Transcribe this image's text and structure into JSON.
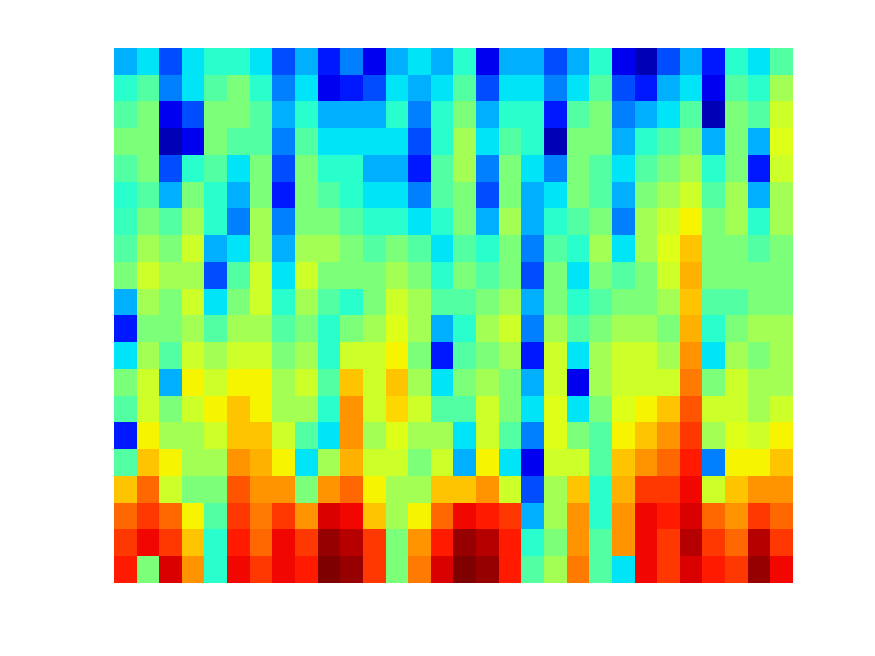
{
  "chart_data": {
    "type": "heatmap",
    "color": "jet",
    "tick_labels": false,
    "grid": false,
    "color_range": [
      0,
      1
    ],
    "cells": [
      [
        0.3,
        0.4,
        0.45,
        0.5,
        0.45,
        0.4,
        0.42,
        0.45,
        0.5,
        0.3,
        0.15,
        0.35,
        0.5,
        0.45,
        0.15,
        0.45,
        0.7,
        0.8,
        0.85,
        0.88
      ],
      [
        0.35,
        0.45,
        0.5,
        0.5,
        0.5,
        0.45,
        0.5,
        0.55,
        0.6,
        0.55,
        0.5,
        0.55,
        0.6,
        0.6,
        0.65,
        0.7,
        0.8,
        0.85,
        0.9,
        0.5
      ],
      [
        0.2,
        0.25,
        0.1,
        0.05,
        0.2,
        0.3,
        0.45,
        0.5,
        0.55,
        0.5,
        0.5,
        0.45,
        0.3,
        0.5,
        0.55,
        0.65,
        0.6,
        0.8,
        0.85,
        0.92
      ],
      [
        0.35,
        0.35,
        0.2,
        0.1,
        0.4,
        0.5,
        0.55,
        0.6,
        0.55,
        0.6,
        0.55,
        0.6,
        0.65,
        0.6,
        0.55,
        0.55,
        0.5,
        0.65,
        0.7,
        0.75
      ],
      [
        0.4,
        0.45,
        0.5,
        0.5,
        0.45,
        0.4,
        0.4,
        0.3,
        0.2,
        0.35,
        0.45,
        0.55,
        0.6,
        0.65,
        0.6,
        0.55,
        0.5,
        0.45,
        0.4,
        0.4
      ],
      [
        0.4,
        0.5,
        0.5,
        0.45,
        0.35,
        0.3,
        0.25,
        0.35,
        0.45,
        0.5,
        0.55,
        0.6,
        0.65,
        0.7,
        0.7,
        0.75,
        0.82,
        0.85,
        0.88,
        0.9
      ],
      [
        0.35,
        0.4,
        0.45,
        0.45,
        0.5,
        0.5,
        0.55,
        0.55,
        0.6,
        0.6,
        0.55,
        0.6,
        0.65,
        0.65,
        0.7,
        0.72,
        0.75,
        0.78,
        0.8,
        0.85
      ],
      [
        0.2,
        0.25,
        0.3,
        0.25,
        0.2,
        0.15,
        0.25,
        0.3,
        0.35,
        0.4,
        0.45,
        0.5,
        0.55,
        0.55,
        0.6,
        0.65,
        0.75,
        0.85,
        0.9,
        0.9
      ],
      [
        0.3,
        0.35,
        0.4,
        0.45,
        0.5,
        0.5,
        0.5,
        0.55,
        0.6,
        0.55,
        0.5,
        0.55,
        0.6,
        0.55,
        0.45,
        0.35,
        0.5,
        0.75,
        0.85,
        0.88
      ],
      [
        0.15,
        0.1,
        0.3,
        0.35,
        0.4,
        0.45,
        0.5,
        0.55,
        0.5,
        0.45,
        0.4,
        0.4,
        0.45,
        0.4,
        0.35,
        0.55,
        0.75,
        0.92,
        0.98,
        1.0
      ],
      [
        0.25,
        0.15,
        0.3,
        0.35,
        0.4,
        0.4,
        0.45,
        0.5,
        0.5,
        0.4,
        0.5,
        0.6,
        0.7,
        0.75,
        0.75,
        0.72,
        0.8,
        0.9,
        0.95,
        0.98
      ],
      [
        0.1,
        0.2,
        0.3,
        0.35,
        0.3,
        0.35,
        0.4,
        0.45,
        0.5,
        0.5,
        0.55,
        0.6,
        0.6,
        0.6,
        0.55,
        0.6,
        0.65,
        0.7,
        0.85,
        0.85
      ],
      [
        0.3,
        0.35,
        0.4,
        0.35,
        0.3,
        0.35,
        0.4,
        0.5,
        0.55,
        0.6,
        0.62,
        0.65,
        0.7,
        0.68,
        0.62,
        0.6,
        0.55,
        0.55,
        0.5,
        0.5
      ],
      [
        0.35,
        0.3,
        0.25,
        0.2,
        0.15,
        0.25,
        0.35,
        0.45,
        0.5,
        0.55,
        0.55,
        0.5,
        0.55,
        0.6,
        0.55,
        0.5,
        0.55,
        0.65,
        0.75,
        0.78
      ],
      [
        0.3,
        0.35,
        0.4,
        0.4,
        0.45,
        0.45,
        0.4,
        0.35,
        0.4,
        0.45,
        0.3,
        0.15,
        0.35,
        0.45,
        0.55,
        0.6,
        0.7,
        0.8,
        0.88,
        0.92
      ],
      [
        0.4,
        0.45,
        0.5,
        0.55,
        0.55,
        0.5,
        0.5,
        0.45,
        0.5,
        0.45,
        0.4,
        0.45,
        0.5,
        0.45,
        0.35,
        0.3,
        0.7,
        0.9,
        0.98,
        1.0
      ],
      [
        0.1,
        0.2,
        0.3,
        0.35,
        0.25,
        0.2,
        0.3,
        0.4,
        0.45,
        0.5,
        0.55,
        0.5,
        0.55,
        0.6,
        0.6,
        0.65,
        0.75,
        0.88,
        0.95,
        0.98
      ],
      [
        0.3,
        0.35,
        0.4,
        0.45,
        0.5,
        0.5,
        0.55,
        0.5,
        0.5,
        0.55,
        0.6,
        0.55,
        0.5,
        0.5,
        0.45,
        0.35,
        0.6,
        0.85,
        0.88,
        0.88
      ],
      [
        0.3,
        0.35,
        0.4,
        0.4,
        0.35,
        0.3,
        0.3,
        0.25,
        0.2,
        0.3,
        0.25,
        0.15,
        0.3,
        0.35,
        0.25,
        0.1,
        0.2,
        0.3,
        0.4,
        0.45
      ],
      [
        0.2,
        0.25,
        0.15,
        0.05,
        0.25,
        0.35,
        0.4,
        0.45,
        0.5,
        0.5,
        0.55,
        0.6,
        0.6,
        0.62,
        0.62,
        0.6,
        0.55,
        0.55,
        0.5,
        0.55
      ],
      [
        0.3,
        0.35,
        0.45,
        0.5,
        0.5,
        0.5,
        0.45,
        0.4,
        0.35,
        0.4,
        0.45,
        0.35,
        0.1,
        0.35,
        0.5,
        0.6,
        0.7,
        0.75,
        0.75,
        0.78
      ],
      [
        0.4,
        0.45,
        0.5,
        0.5,
        0.45,
        0.45,
        0.5,
        0.55,
        0.5,
        0.45,
        0.5,
        0.55,
        0.55,
        0.5,
        0.45,
        0.45,
        0.4,
        0.4,
        0.45,
        0.45
      ],
      [
        0.1,
        0.2,
        0.25,
        0.3,
        0.35,
        0.3,
        0.25,
        0.35,
        0.45,
        0.5,
        0.55,
        0.6,
        0.6,
        0.62,
        0.65,
        0.7,
        0.72,
        0.75,
        0.75,
        0.35
      ],
      [
        0.05,
        0.15,
        0.3,
        0.4,
        0.45,
        0.5,
        0.55,
        0.55,
        0.5,
        0.5,
        0.55,
        0.6,
        0.6,
        0.65,
        0.7,
        0.75,
        0.85,
        0.9,
        0.9,
        0.9
      ],
      [
        0.2,
        0.3,
        0.35,
        0.45,
        0.5,
        0.55,
        0.6,
        0.62,
        0.6,
        0.55,
        0.5,
        0.55,
        0.6,
        0.7,
        0.75,
        0.8,
        0.85,
        0.88,
        0.85,
        0.85
      ],
      [
        0.3,
        0.35,
        0.45,
        0.5,
        0.55,
        0.6,
        0.65,
        0.7,
        0.72,
        0.7,
        0.72,
        0.75,
        0.78,
        0.82,
        0.85,
        0.88,
        0.9,
        0.92,
        0.95,
        0.92
      ],
      [
        0.15,
        0.1,
        0.05,
        0.3,
        0.4,
        0.45,
        0.5,
        0.5,
        0.5,
        0.45,
        0.4,
        0.35,
        0.5,
        0.6,
        0.55,
        0.25,
        0.6,
        0.8,
        0.85,
        0.88
      ],
      [
        0.4,
        0.45,
        0.5,
        0.5,
        0.5,
        0.55,
        0.55,
        0.5,
        0.5,
        0.45,
        0.5,
        0.55,
        0.6,
        0.6,
        0.62,
        0.65,
        0.7,
        0.75,
        0.8,
        0.85
      ],
      [
        0.35,
        0.4,
        0.45,
        0.3,
        0.15,
        0.3,
        0.4,
        0.45,
        0.5,
        0.5,
        0.55,
        0.5,
        0.55,
        0.55,
        0.6,
        0.65,
        0.75,
        0.85,
        0.95,
        0.98
      ],
      [
        0.45,
        0.55,
        0.6,
        0.62,
        0.6,
        0.55,
        0.55,
        0.5,
        0.5,
        0.5,
        0.55,
        0.55,
        0.55,
        0.6,
        0.65,
        0.7,
        0.75,
        0.8,
        0.85,
        0.9
      ]
    ]
  }
}
